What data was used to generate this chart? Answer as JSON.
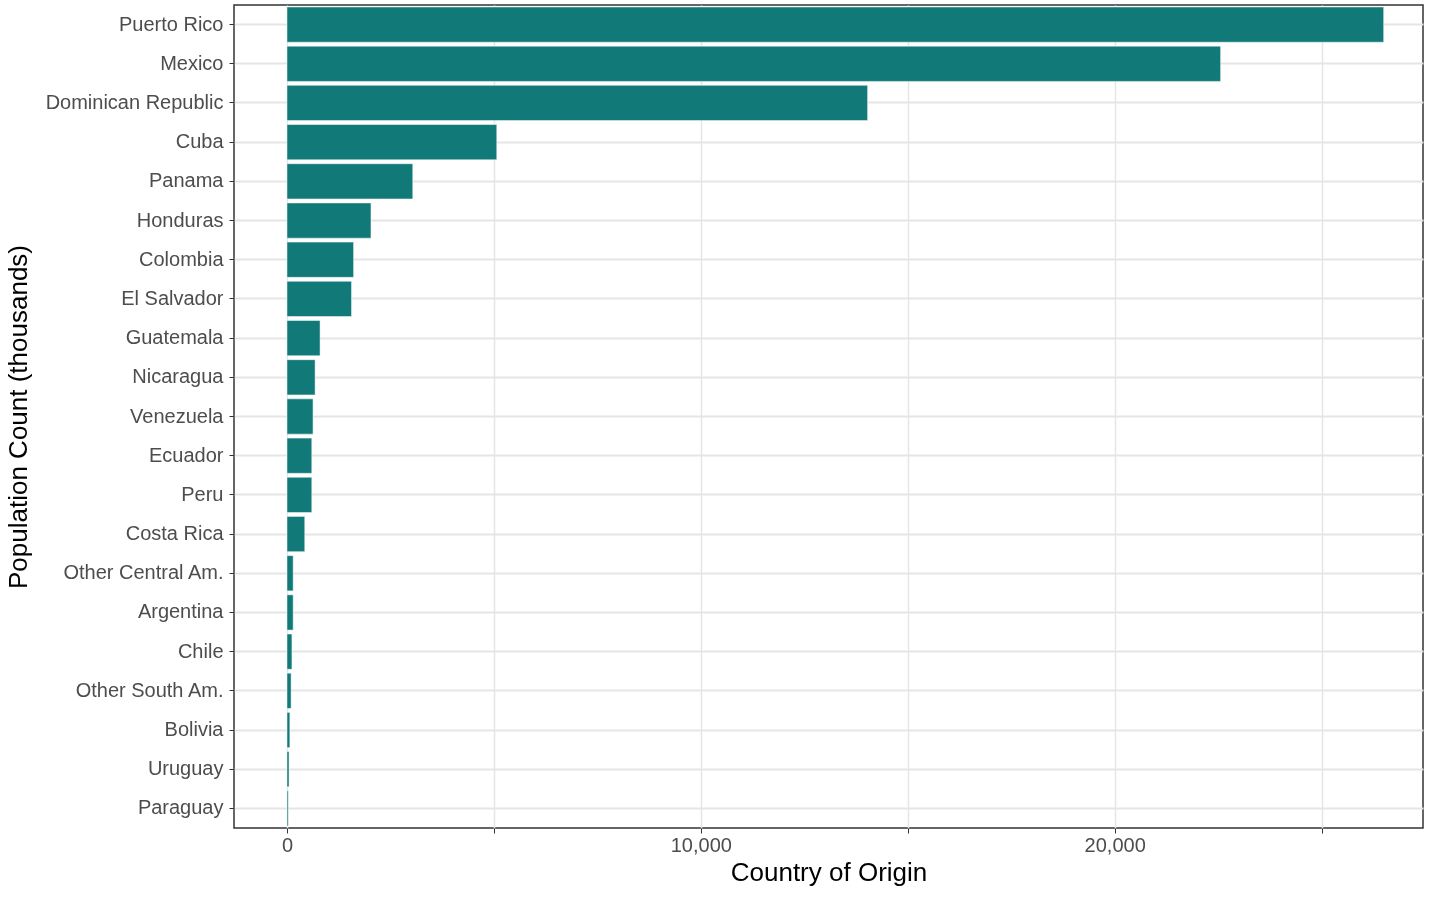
{
  "chart_data": {
    "type": "bar",
    "orientation": "horizontal",
    "xlabel": "Country of Origin",
    "ylabel": "Population Count (thousands)",
    "categories": [
      "Puerto Rico",
      "Mexico",
      "Dominican Republic",
      "Cuba",
      "Panama",
      "Honduras",
      "Colombia",
      "El Salvador",
      "Guatemala",
      "Nicaragua",
      "Venezuela",
      "Ecuador",
      "Peru",
      "Costa Rica",
      "Other Central Am.",
      "Argentina",
      "Chile",
      "Other South Am.",
      "Bolivia",
      "Uruguay",
      "Paraguay"
    ],
    "values": [
      26500,
      22560,
      14030,
      5070,
      3040,
      2030,
      1610,
      1560,
      800,
      680,
      630,
      600,
      600,
      430,
      150,
      150,
      120,
      100,
      70,
      50,
      30
    ],
    "color": "#117a78",
    "xlim": [
      -1280,
      27450
    ],
    "xticks": [
      {
        "value": 0,
        "label": "0"
      },
      {
        "value": 5000,
        "label": null
      },
      {
        "value": 10000,
        "label": "10,000"
      },
      {
        "value": 15000,
        "label": null
      },
      {
        "value": 20000,
        "label": "20,000"
      },
      {
        "value": 25000,
        "label": null
      }
    ],
    "grid": true
  }
}
